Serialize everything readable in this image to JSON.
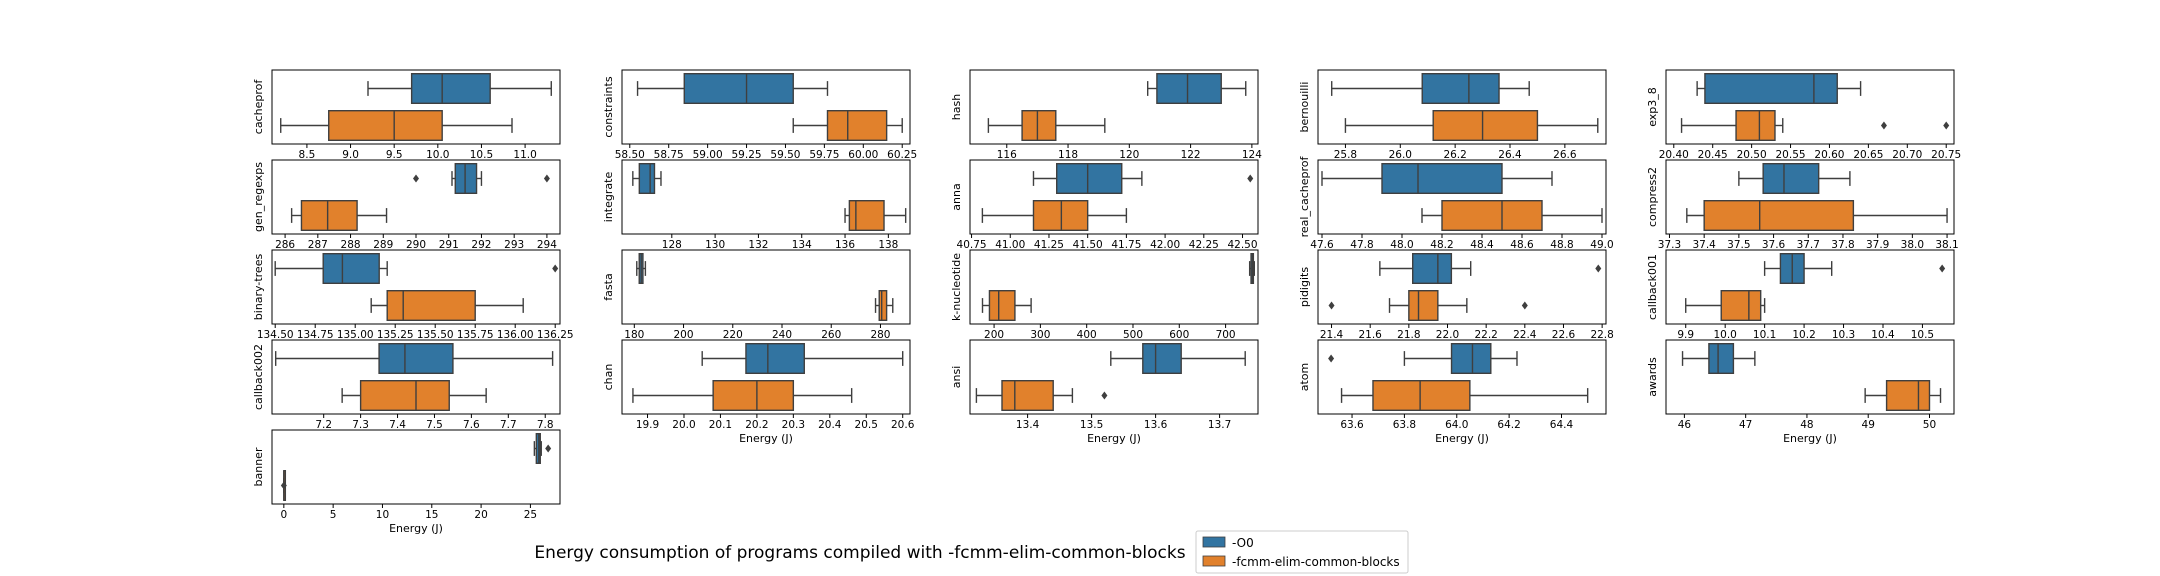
{
  "figure": {
    "title": "Energy consumption of programs compiled with -fcmm-elim-common-blocks",
    "legend_placement": "bottom-center",
    "colors": {
      "O0": "#3274a1",
      "flag": "#e1812c",
      "line": "#3f3f3f"
    }
  },
  "legend": [
    {
      "name": "-O0",
      "color": "#3274a1"
    },
    {
      "name": "-fcmm-elim-common-blocks",
      "color": "#e1812c"
    }
  ],
  "chart_data": [
    {
      "type": "box",
      "label": "cacheprof",
      "xlabel": "",
      "xlim": [
        8.1,
        11.4
      ],
      "ticks": [
        8.5,
        9.0,
        9.5,
        10.0,
        10.5,
        11.0
      ],
      "tick_labels": [
        "8.5",
        "9.0",
        "9.5",
        "10.0",
        "10.5",
        "11.0"
      ],
      "series": [
        {
          "name": "-O0",
          "whislo": 9.2,
          "q1": 9.7,
          "med": 10.05,
          "q3": 10.6,
          "whishi": 11.3,
          "fliers": []
        },
        {
          "name": "-fcmm-elim-common-blocks",
          "whislo": 8.2,
          "q1": 8.75,
          "med": 9.5,
          "q3": 10.05,
          "whishi": 10.85,
          "fliers": []
        }
      ]
    },
    {
      "type": "box",
      "label": "constraints",
      "xlabel": "",
      "xlim": [
        58.45,
        60.3
      ],
      "ticks": [
        58.5,
        58.75,
        59.0,
        59.25,
        59.5,
        59.75,
        60.0,
        60.25
      ],
      "tick_labels": [
        "58.50",
        "58.75",
        "59.00",
        "59.25",
        "59.50",
        "59.75",
        "60.00",
        "60.25"
      ],
      "series": [
        {
          "name": "-O0",
          "whislo": 58.55,
          "q1": 58.85,
          "med": 59.25,
          "q3": 59.55,
          "whishi": 59.77,
          "fliers": []
        },
        {
          "name": "-fcmm-elim-common-blocks",
          "whislo": 59.55,
          "q1": 59.77,
          "med": 59.9,
          "q3": 60.15,
          "whishi": 60.25,
          "fliers": []
        }
      ]
    },
    {
      "type": "box",
      "label": "hash",
      "xlabel": "",
      "xlim": [
        114.8,
        124.2
      ],
      "ticks": [
        116,
        118,
        120,
        122,
        124
      ],
      "tick_labels": [
        "116",
        "118",
        "120",
        "122",
        "124"
      ],
      "series": [
        {
          "name": "-O0",
          "whislo": 120.6,
          "q1": 120.9,
          "med": 121.9,
          "q3": 123.0,
          "whishi": 123.8,
          "fliers": []
        },
        {
          "name": "-fcmm-elim-common-blocks",
          "whislo": 115.4,
          "q1": 116.5,
          "med": 117.0,
          "q3": 117.6,
          "whishi": 119.2,
          "fliers": []
        }
      ]
    },
    {
      "type": "box",
      "label": "bernouilli",
      "xlabel": "",
      "xlim": [
        25.7,
        26.75
      ],
      "ticks": [
        25.8,
        26.0,
        26.2,
        26.4,
        26.6
      ],
      "tick_labels": [
        "25.8",
        "26.0",
        "26.2",
        "26.4",
        "26.6"
      ],
      "series": [
        {
          "name": "-O0",
          "whislo": 25.75,
          "q1": 26.08,
          "med": 26.25,
          "q3": 26.36,
          "whishi": 26.47,
          "fliers": []
        },
        {
          "name": "-fcmm-elim-common-blocks",
          "whislo": 25.8,
          "q1": 26.12,
          "med": 26.3,
          "q3": 26.5,
          "whishi": 26.72,
          "fliers": []
        }
      ]
    },
    {
      "type": "box",
      "label": "exp3_8",
      "xlabel": "",
      "xlim": [
        20.39,
        20.76
      ],
      "ticks": [
        20.4,
        20.45,
        20.5,
        20.55,
        20.6,
        20.65,
        20.7,
        20.75
      ],
      "tick_labels": [
        "20.40",
        "20.45",
        "20.50",
        "20.55",
        "20.60",
        "20.65",
        "20.70",
        "20.75"
      ],
      "series": [
        {
          "name": "-O0",
          "whislo": 20.43,
          "q1": 20.44,
          "med": 20.58,
          "q3": 20.61,
          "whishi": 20.64,
          "fliers": []
        },
        {
          "name": "-fcmm-elim-common-blocks",
          "whislo": 20.41,
          "q1": 20.48,
          "med": 20.51,
          "q3": 20.53,
          "whishi": 20.54,
          "fliers": [
            20.67,
            20.75
          ]
        }
      ]
    },
    {
      "type": "box",
      "label": "gen_regexps",
      "xlabel": "",
      "xlim": [
        285.6,
        294.4
      ],
      "ticks": [
        286,
        287,
        288,
        289,
        290,
        291,
        292,
        293,
        294
      ],
      "tick_labels": [
        "286",
        "287",
        "288",
        "289",
        "290",
        "291",
        "292",
        "293",
        "294"
      ],
      "series": [
        {
          "name": "-O0",
          "whislo": 291.1,
          "q1": 291.2,
          "med": 291.5,
          "q3": 291.85,
          "whishi": 292.0,
          "fliers": [
            290.0,
            294.0
          ]
        },
        {
          "name": "-fcmm-elim-common-blocks",
          "whislo": 286.2,
          "q1": 286.5,
          "med": 287.3,
          "q3": 288.2,
          "whishi": 289.1,
          "fliers": []
        }
      ]
    },
    {
      "type": "box",
      "label": "integrate",
      "xlabel": "",
      "xlim": [
        125.7,
        139.0
      ],
      "ticks": [
        128,
        130,
        132,
        134,
        136,
        138
      ],
      "tick_labels": [
        "128",
        "130",
        "132",
        "134",
        "136",
        "138"
      ],
      "series": [
        {
          "name": "-O0",
          "whislo": 126.2,
          "q1": 126.5,
          "med": 127.0,
          "q3": 127.2,
          "whishi": 127.5,
          "fliers": []
        },
        {
          "name": "-fcmm-elim-common-blocks",
          "whislo": 136.0,
          "q1": 136.2,
          "med": 136.5,
          "q3": 137.8,
          "whishi": 138.8,
          "fliers": []
        }
      ]
    },
    {
      "type": "box",
      "label": "anna",
      "xlabel": "",
      "xlim": [
        40.74,
        42.6
      ],
      "ticks": [
        40.75,
        41.0,
        41.25,
        41.5,
        41.75,
        42.0,
        42.25,
        42.5
      ],
      "tick_labels": [
        "40.75",
        "41.00",
        "41.25",
        "41.50",
        "41.75",
        "42.00",
        "42.25",
        "42.50"
      ],
      "series": [
        {
          "name": "-O0",
          "whislo": 41.15,
          "q1": 41.3,
          "med": 41.5,
          "q3": 41.72,
          "whishi": 41.85,
          "fliers": [
            42.55
          ]
        },
        {
          "name": "-fcmm-elim-common-blocks",
          "whislo": 40.82,
          "q1": 41.15,
          "med": 41.33,
          "q3": 41.5,
          "whishi": 41.75,
          "fliers": []
        }
      ]
    },
    {
      "type": "box",
      "label": "real_cacheprof",
      "xlabel": "",
      "xlim": [
        47.58,
        49.02
      ],
      "ticks": [
        47.6,
        47.8,
        48.0,
        48.2,
        48.4,
        48.6,
        48.8,
        49.0
      ],
      "tick_labels": [
        "47.6",
        "47.8",
        "48.0",
        "48.2",
        "48.4",
        "48.6",
        "48.8",
        "49.0"
      ],
      "series": [
        {
          "name": "-O0",
          "whislo": 47.6,
          "q1": 47.9,
          "med": 48.08,
          "q3": 48.5,
          "whishi": 48.75,
          "fliers": []
        },
        {
          "name": "-fcmm-elim-common-blocks",
          "whislo": 48.1,
          "q1": 48.2,
          "med": 48.5,
          "q3": 48.7,
          "whishi": 49.0,
          "fliers": []
        }
      ]
    },
    {
      "type": "box",
      "label": "compress2",
      "xlabel": "",
      "xlim": [
        37.29,
        38.12
      ],
      "ticks": [
        37.3,
        37.4,
        37.5,
        37.6,
        37.7,
        37.8,
        37.9,
        38.0,
        38.1
      ],
      "tick_labels": [
        "37.3",
        "37.4",
        "37.5",
        "37.6",
        "37.7",
        "37.8",
        "37.9",
        "38.0",
        "38.1"
      ],
      "series": [
        {
          "name": "-O0",
          "whislo": 37.5,
          "q1": 37.57,
          "med": 37.63,
          "q3": 37.73,
          "whishi": 37.82,
          "fliers": []
        },
        {
          "name": "-fcmm-elim-common-blocks",
          "whislo": 37.35,
          "q1": 37.4,
          "med": 37.56,
          "q3": 37.83,
          "whishi": 38.1,
          "fliers": []
        }
      ]
    },
    {
      "type": "box",
      "label": "binary-trees",
      "xlabel": "",
      "xlim": [
        134.48,
        136.28
      ],
      "ticks": [
        134.5,
        134.75,
        135.0,
        135.25,
        135.5,
        135.75,
        136.0,
        136.25
      ],
      "tick_labels": [
        "134.50",
        "134.75",
        "135.00",
        "135.25",
        "135.50",
        "135.75",
        "136.00",
        "136.25"
      ],
      "series": [
        {
          "name": "-O0",
          "whislo": 134.5,
          "q1": 134.8,
          "med": 134.92,
          "q3": 135.15,
          "whishi": 135.2,
          "fliers": [
            136.25
          ]
        },
        {
          "name": "-fcmm-elim-common-blocks",
          "whislo": 135.1,
          "q1": 135.2,
          "med": 135.3,
          "q3": 135.75,
          "whishi": 136.05,
          "fliers": []
        }
      ]
    },
    {
      "type": "box",
      "label": "fasta",
      "xlabel": "",
      "xlim": [
        175,
        292
      ],
      "ticks": [
        180,
        200,
        220,
        240,
        260,
        280
      ],
      "tick_labels": [
        "180",
        "200",
        "220",
        "240",
        "260",
        "280"
      ],
      "series": [
        {
          "name": "-O0",
          "whislo": 181,
          "q1": 182,
          "med": 182.8,
          "q3": 183.5,
          "whishi": 184.5,
          "fliers": []
        },
        {
          "name": "-fcmm-elim-common-blocks",
          "whislo": 278,
          "q1": 279.5,
          "med": 280.5,
          "q3": 282.5,
          "whishi": 285,
          "fliers": []
        }
      ]
    },
    {
      "type": "box",
      "label": "k-nucleotide",
      "xlabel": "",
      "xlim": [
        148,
        770
      ],
      "ticks": [
        200,
        300,
        400,
        500,
        600,
        700
      ],
      "tick_labels": [
        "200",
        "300",
        "400",
        "500",
        "600",
        "700"
      ],
      "series": [
        {
          "name": "-O0",
          "whislo": 752,
          "q1": 755,
          "med": 758,
          "q3": 760,
          "whishi": 762,
          "fliers": []
        },
        {
          "name": "-fcmm-elim-common-blocks",
          "whislo": 175,
          "q1": 190,
          "med": 210,
          "q3": 245,
          "whishi": 280,
          "fliers": []
        }
      ]
    },
    {
      "type": "box",
      "label": "pidigits",
      "xlabel": "",
      "xlim": [
        21.33,
        22.82
      ],
      "ticks": [
        21.4,
        21.6,
        21.8,
        22.0,
        22.2,
        22.4,
        22.6,
        22.8
      ],
      "tick_labels": [
        "21.4",
        "21.6",
        "21.8",
        "22.0",
        "22.2",
        "22.4",
        "22.6",
        "22.8"
      ],
      "series": [
        {
          "name": "-O0",
          "whislo": 21.65,
          "q1": 21.82,
          "med": 21.95,
          "q3": 22.02,
          "whishi": 22.12,
          "fliers": [
            22.78
          ]
        },
        {
          "name": "-fcmm-elim-common-blocks",
          "whislo": 21.7,
          "q1": 21.8,
          "med": 21.85,
          "q3": 21.95,
          "whishi": 22.1,
          "fliers": [
            21.4,
            22.4
          ]
        }
      ]
    },
    {
      "type": "box",
      "label": "callback001",
      "xlabel": "",
      "xlim": [
        9.85,
        10.58
      ],
      "ticks": [
        9.9,
        10.0,
        10.1,
        10.2,
        10.3,
        10.4,
        10.5
      ],
      "tick_labels": [
        "9.9",
        "10.0",
        "10.1",
        "10.2",
        "10.3",
        "10.4",
        "10.5"
      ],
      "series": [
        {
          "name": "-O0",
          "whislo": 10.1,
          "q1": 10.14,
          "med": 10.17,
          "q3": 10.2,
          "whishi": 10.27,
          "fliers": [
            10.55
          ]
        },
        {
          "name": "-fcmm-elim-common-blocks",
          "whislo": 9.9,
          "q1": 9.99,
          "med": 10.06,
          "q3": 10.09,
          "whishi": 10.1,
          "fliers": []
        }
      ]
    },
    {
      "type": "box",
      "label": "callback002",
      "xlabel": "",
      "xlim": [
        7.06,
        7.84
      ],
      "ticks": [
        7.2,
        7.3,
        7.4,
        7.5,
        7.6,
        7.7,
        7.8
      ],
      "tick_labels": [
        "7.2",
        "7.3",
        "7.4",
        "7.5",
        "7.6",
        "7.7",
        "7.8"
      ],
      "series": [
        {
          "name": "-O0",
          "whislo": 7.07,
          "q1": 7.35,
          "med": 7.42,
          "q3": 7.55,
          "whishi": 7.82,
          "fliers": []
        },
        {
          "name": "-fcmm-elim-common-blocks",
          "whislo": 7.25,
          "q1": 7.3,
          "med": 7.45,
          "q3": 7.54,
          "whishi": 7.64,
          "fliers": []
        }
      ]
    },
    {
      "type": "box",
      "label": "chan",
      "xlabel": "Energy (J)",
      "xlim": [
        19.83,
        20.62
      ],
      "ticks": [
        19.9,
        20.0,
        20.1,
        20.2,
        20.3,
        20.4,
        20.5,
        20.6
      ],
      "tick_labels": [
        "19.9",
        "20.0",
        "20.1",
        "20.2",
        "20.3",
        "20.4",
        "20.5",
        "20.6"
      ],
      "series": [
        {
          "name": "-O0",
          "whislo": 20.05,
          "q1": 20.17,
          "med": 20.23,
          "q3": 20.33,
          "whishi": 20.6,
          "fliers": []
        },
        {
          "name": "-fcmm-elim-common-blocks",
          "whislo": 19.86,
          "q1": 20.08,
          "med": 20.2,
          "q3": 20.3,
          "whishi": 20.46,
          "fliers": []
        }
      ]
    },
    {
      "type": "box",
      "label": "ansi",
      "xlabel": "Energy (J)",
      "xlim": [
        13.31,
        13.76
      ],
      "ticks": [
        13.4,
        13.5,
        13.6,
        13.7
      ],
      "tick_labels": [
        "13.4",
        "13.5",
        "13.6",
        "13.7"
      ],
      "series": [
        {
          "name": "-O0",
          "whislo": 13.53,
          "q1": 13.58,
          "med": 13.6,
          "q3": 13.64,
          "whishi": 13.74,
          "fliers": []
        },
        {
          "name": "-fcmm-elim-common-blocks",
          "whislo": 13.32,
          "q1": 13.36,
          "med": 13.38,
          "q3": 13.44,
          "whishi": 13.47,
          "fliers": [
            13.52
          ]
        }
      ]
    },
    {
      "type": "box",
      "label": "atom",
      "xlabel": "Energy (J)",
      "xlim": [
        63.47,
        64.57
      ],
      "ticks": [
        63.6,
        63.8,
        64.0,
        64.2,
        64.4
      ],
      "tick_labels": [
        "63.6",
        "63.8",
        "64.0",
        "64.2",
        "64.4"
      ],
      "series": [
        {
          "name": "-O0",
          "whislo": 63.8,
          "q1": 63.98,
          "med": 64.06,
          "q3": 64.13,
          "whishi": 64.23,
          "fliers": [
            63.52
          ]
        },
        {
          "name": "-fcmm-elim-common-blocks",
          "whislo": 63.56,
          "q1": 63.68,
          "med": 63.86,
          "q3": 64.05,
          "whishi": 64.5,
          "fliers": []
        }
      ]
    },
    {
      "type": "box",
      "label": "awards",
      "xlabel": "Energy (J)",
      "xlim": [
        45.7,
        50.4
      ],
      "ticks": [
        46,
        47,
        48,
        49,
        50
      ],
      "tick_labels": [
        "46",
        "47",
        "48",
        "49",
        "50"
      ],
      "series": [
        {
          "name": "-O0",
          "whislo": 45.97,
          "q1": 46.4,
          "med": 46.55,
          "q3": 46.8,
          "whishi": 47.15,
          "fliers": []
        },
        {
          "name": "-fcmm-elim-common-blocks",
          "whislo": 48.95,
          "q1": 49.3,
          "med": 49.82,
          "q3": 50.0,
          "whishi": 50.18,
          "fliers": []
        }
      ]
    },
    {
      "type": "box",
      "label": "banner",
      "xlabel": "Energy (J)",
      "xlim": [
        -1.2,
        28.0
      ],
      "ticks": [
        0,
        5,
        10,
        15,
        20,
        25
      ],
      "tick_labels": [
        "0",
        "5",
        "10",
        "15",
        "20",
        "25"
      ],
      "series": [
        {
          "name": "-O0",
          "whislo": 25.4,
          "q1": 25.6,
          "med": 25.85,
          "q3": 26.0,
          "whishi": 26.1,
          "fliers": [
            26.8
          ]
        },
        {
          "name": "-fcmm-elim-common-blocks",
          "whislo": 0,
          "q1": 0,
          "med": 0,
          "q3": 0,
          "whishi": 0,
          "fliers": [
            0.0
          ]
        }
      ]
    }
  ]
}
